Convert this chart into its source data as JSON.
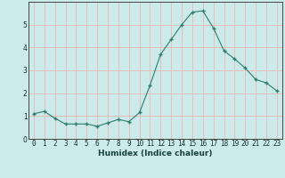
{
  "x": [
    0,
    1,
    2,
    3,
    4,
    5,
    6,
    7,
    8,
    9,
    10,
    11,
    12,
    13,
    14,
    15,
    16,
    17,
    18,
    19,
    20,
    21,
    22,
    23
  ],
  "y": [
    1.1,
    1.2,
    0.9,
    0.65,
    0.65,
    0.65,
    0.55,
    0.7,
    0.85,
    0.75,
    1.15,
    2.35,
    3.7,
    4.35,
    5.0,
    5.55,
    5.6,
    4.85,
    3.85,
    3.5,
    3.1,
    2.6,
    2.45,
    2.1
  ],
  "xlabel": "Humidex (Indice chaleur)",
  "ylim": [
    0,
    6
  ],
  "yticks": [
    0,
    1,
    2,
    3,
    4,
    5,
    6
  ],
  "line_color": "#2e7d6e",
  "marker": "+",
  "marker_size": 3.5,
  "bg_color": "#cceaea",
  "grid_color": "#e8b8b8",
  "axis_label_fontsize": 6.5,
  "tick_fontsize": 5.5
}
